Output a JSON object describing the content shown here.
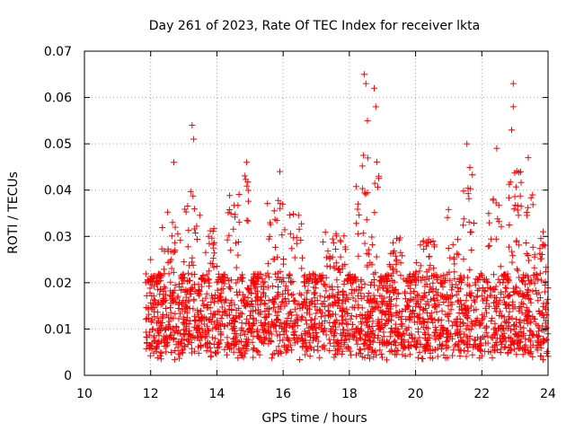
{
  "chart_data": {
    "type": "scatter",
    "title": "Day 261 of 2023, Rate Of TEC Index for receiver lkta",
    "xlabel": "GPS time / hours",
    "ylabel": "ROTI / TECUs",
    "xlim": [
      10,
      24
    ],
    "ylim": [
      0,
      0.07
    ],
    "xticks": [
      10,
      12,
      14,
      16,
      18,
      20,
      22,
      24
    ],
    "yticks": [
      0,
      0.01,
      0.02,
      0.03,
      0.04,
      0.05,
      0.06,
      0.07
    ],
    "xtick_labels": [
      "10",
      "12",
      "14",
      "16",
      "18",
      "20",
      "22",
      "24"
    ],
    "ytick_labels": [
      "0",
      "0.01",
      "0.02",
      "0.03",
      "0.04",
      "0.05",
      "0.06",
      "0.07"
    ],
    "grid": true,
    "marker": "plus",
    "color": "#ff0000",
    "series": [
      {
        "name": "ROTI",
        "x_range": [
          11.85,
          24.0
        ],
        "baseline_band": [
          0.005,
          0.02
        ],
        "peaks": [
          {
            "x": 13.25,
            "y": 0.054
          },
          {
            "x": 13.3,
            "y": 0.051
          },
          {
            "x": 12.7,
            "y": 0.046
          },
          {
            "x": 14.9,
            "y": 0.046
          },
          {
            "x": 15.9,
            "y": 0.044
          },
          {
            "x": 18.45,
            "y": 0.065
          },
          {
            "x": 18.5,
            "y": 0.063
          },
          {
            "x": 18.75,
            "y": 0.062
          },
          {
            "x": 18.8,
            "y": 0.058
          },
          {
            "x": 18.55,
            "y": 0.055
          },
          {
            "x": 21.55,
            "y": 0.05
          },
          {
            "x": 22.45,
            "y": 0.049
          },
          {
            "x": 22.95,
            "y": 0.063
          },
          {
            "x": 22.95,
            "y": 0.058
          },
          {
            "x": 22.9,
            "y": 0.053
          },
          {
            "x": 23.4,
            "y": 0.047
          },
          {
            "x": 12.0,
            "y": 0.025
          },
          {
            "x": 23.85,
            "y": 0.031
          }
        ]
      }
    ]
  }
}
